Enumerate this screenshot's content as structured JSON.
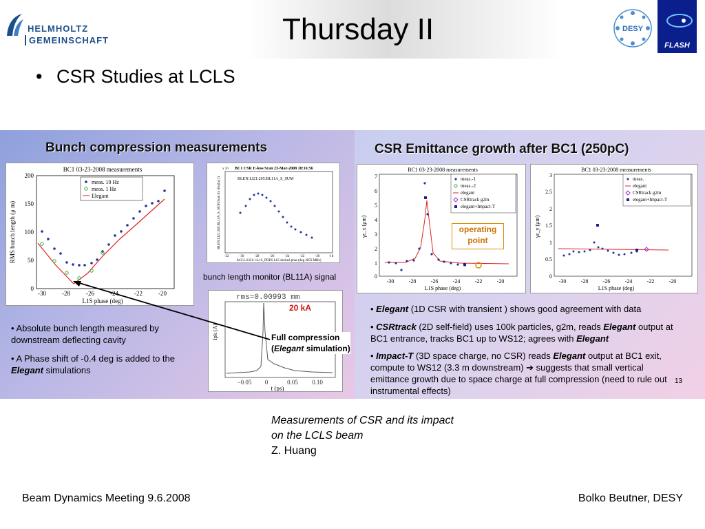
{
  "header": {
    "title": "Thursday II",
    "helmholtz_line1": "HELMHOLTZ",
    "helmholtz_line2": "GEMEINSCHAFT",
    "desy_label": "DESY",
    "flash_label": "FLASH"
  },
  "bullet": "CSR Studies at LCLS",
  "left_panel": {
    "title": "Bunch compression measurements",
    "plot1": {
      "title": "BC1 03-23-2008 measurements",
      "ylabel": "RMS bunch length (μ m)",
      "xlabel": "L1S phase (deg)",
      "legend": [
        "meas. 10 Hz",
        "meas. 1 Hz",
        "Elegant"
      ],
      "yticks": [
        "200",
        "150",
        "100",
        "50",
        "0"
      ],
      "xticks": [
        "-30",
        "-28",
        "-26",
        "-24",
        "-22",
        "-20"
      ]
    },
    "plot2": {
      "title": "BC1 CSR E-loss Scan 23-Mar-2008 18:16:56",
      "legend": "BLEN:LI21:265:BL11A_S_SUM",
      "ylabel": "BLEN:LI21:265:BL11A_S_SUM Sum for display ()",
      "xlabel": "ACCL:LI21:1:L1S_PDES L1S desired phas (deg 2856 MHz)",
      "xticks": [
        "-32",
        "-30",
        "-28",
        "-26",
        "-24",
        "-22",
        "-20",
        "-18"
      ],
      "exponent": "x 10"
    },
    "monitor_label": "bunch length monitor (BL11A) signal",
    "plot3": {
      "rms": "rms=0.00993  mm",
      "ka": "20 kA",
      "ylabel": "Ipk (A)",
      "xlabel": "t (ps)",
      "xticks": [
        "−0.05",
        "0",
        "0.05",
        "0.10"
      ],
      "full_comp_1": "Full compression",
      "full_comp_2": "Elegant",
      "full_comp_3": "simulation"
    },
    "note1": "• Absolute bunch length measured by downstream deflecting cavity",
    "note2_a": "• A Phase shift of -0.4 deg is added to the ",
    "note2_b": "Elegant",
    "note2_c": " simulations"
  },
  "right_panel": {
    "title": "CSR Emittance growth after BC1 (250pC)",
    "plotx": {
      "title": "BC1 03-23-2008 measurements",
      "ylabel": "γε_x (μm)",
      "xlabel": "L1S phase (deg)",
      "legend": [
        "meas.-1",
        "meas.-2",
        "elegant",
        "CSRtrack g2m",
        "elegant+Impact-T"
      ],
      "yticks": [
        "7",
        "6",
        "5",
        "4",
        "3",
        "2",
        "1",
        "0"
      ],
      "xticks": [
        "-30",
        "-28",
        "-26",
        "-24",
        "-22",
        "-20"
      ],
      "op1": "operating",
      "op2": "point"
    },
    "ploty": {
      "title": "BC1 03-23-2008 measurements",
      "ylabel": "γε_y (μm)",
      "xlabel": "L1S phase (deg)",
      "legend": [
        "meas.",
        "elegant",
        "CSRtrack g2m",
        "elegant+Impact-T"
      ],
      "yticks": [
        "3",
        "2.5",
        "2",
        "1.5",
        "1",
        "0.5",
        "0"
      ],
      "xticks": [
        "-30",
        "-28",
        "-26",
        "-24",
        "-22",
        "-20"
      ]
    },
    "n1a": "Elegant",
    "n1b": " (1D CSR with transient ) shows good agreement with data",
    "n2a": "CSRtrack",
    "n2b": " (2D self-field) uses 100k particles, g2m, reads ",
    "n2c": "Elegant",
    "n2d": " output at BC1 entrance, tracks BC1 up to WS12; agrees with ",
    "n2e": "Elegant",
    "n3a": "Impact-T",
    "n3b": " (3D space charge, no CSR) reads ",
    "n3c": "Elegant",
    "n3d": " output at BC1 exit, compute to WS12 (3.3 m downstream) ➔ suggests that small vertical emittance growth due to space charge at full compression (need to rule out instrumental effects)",
    "page": "13"
  },
  "caption": {
    "line1": "Measurements of CSR and its impact",
    "line2": "on the LCLS beam",
    "line3": "Z. Huang"
  },
  "footer": {
    "left": "Beam Dynamics Meeting 9.6.2008",
    "right": "Bolko Beutner, DESY"
  }
}
